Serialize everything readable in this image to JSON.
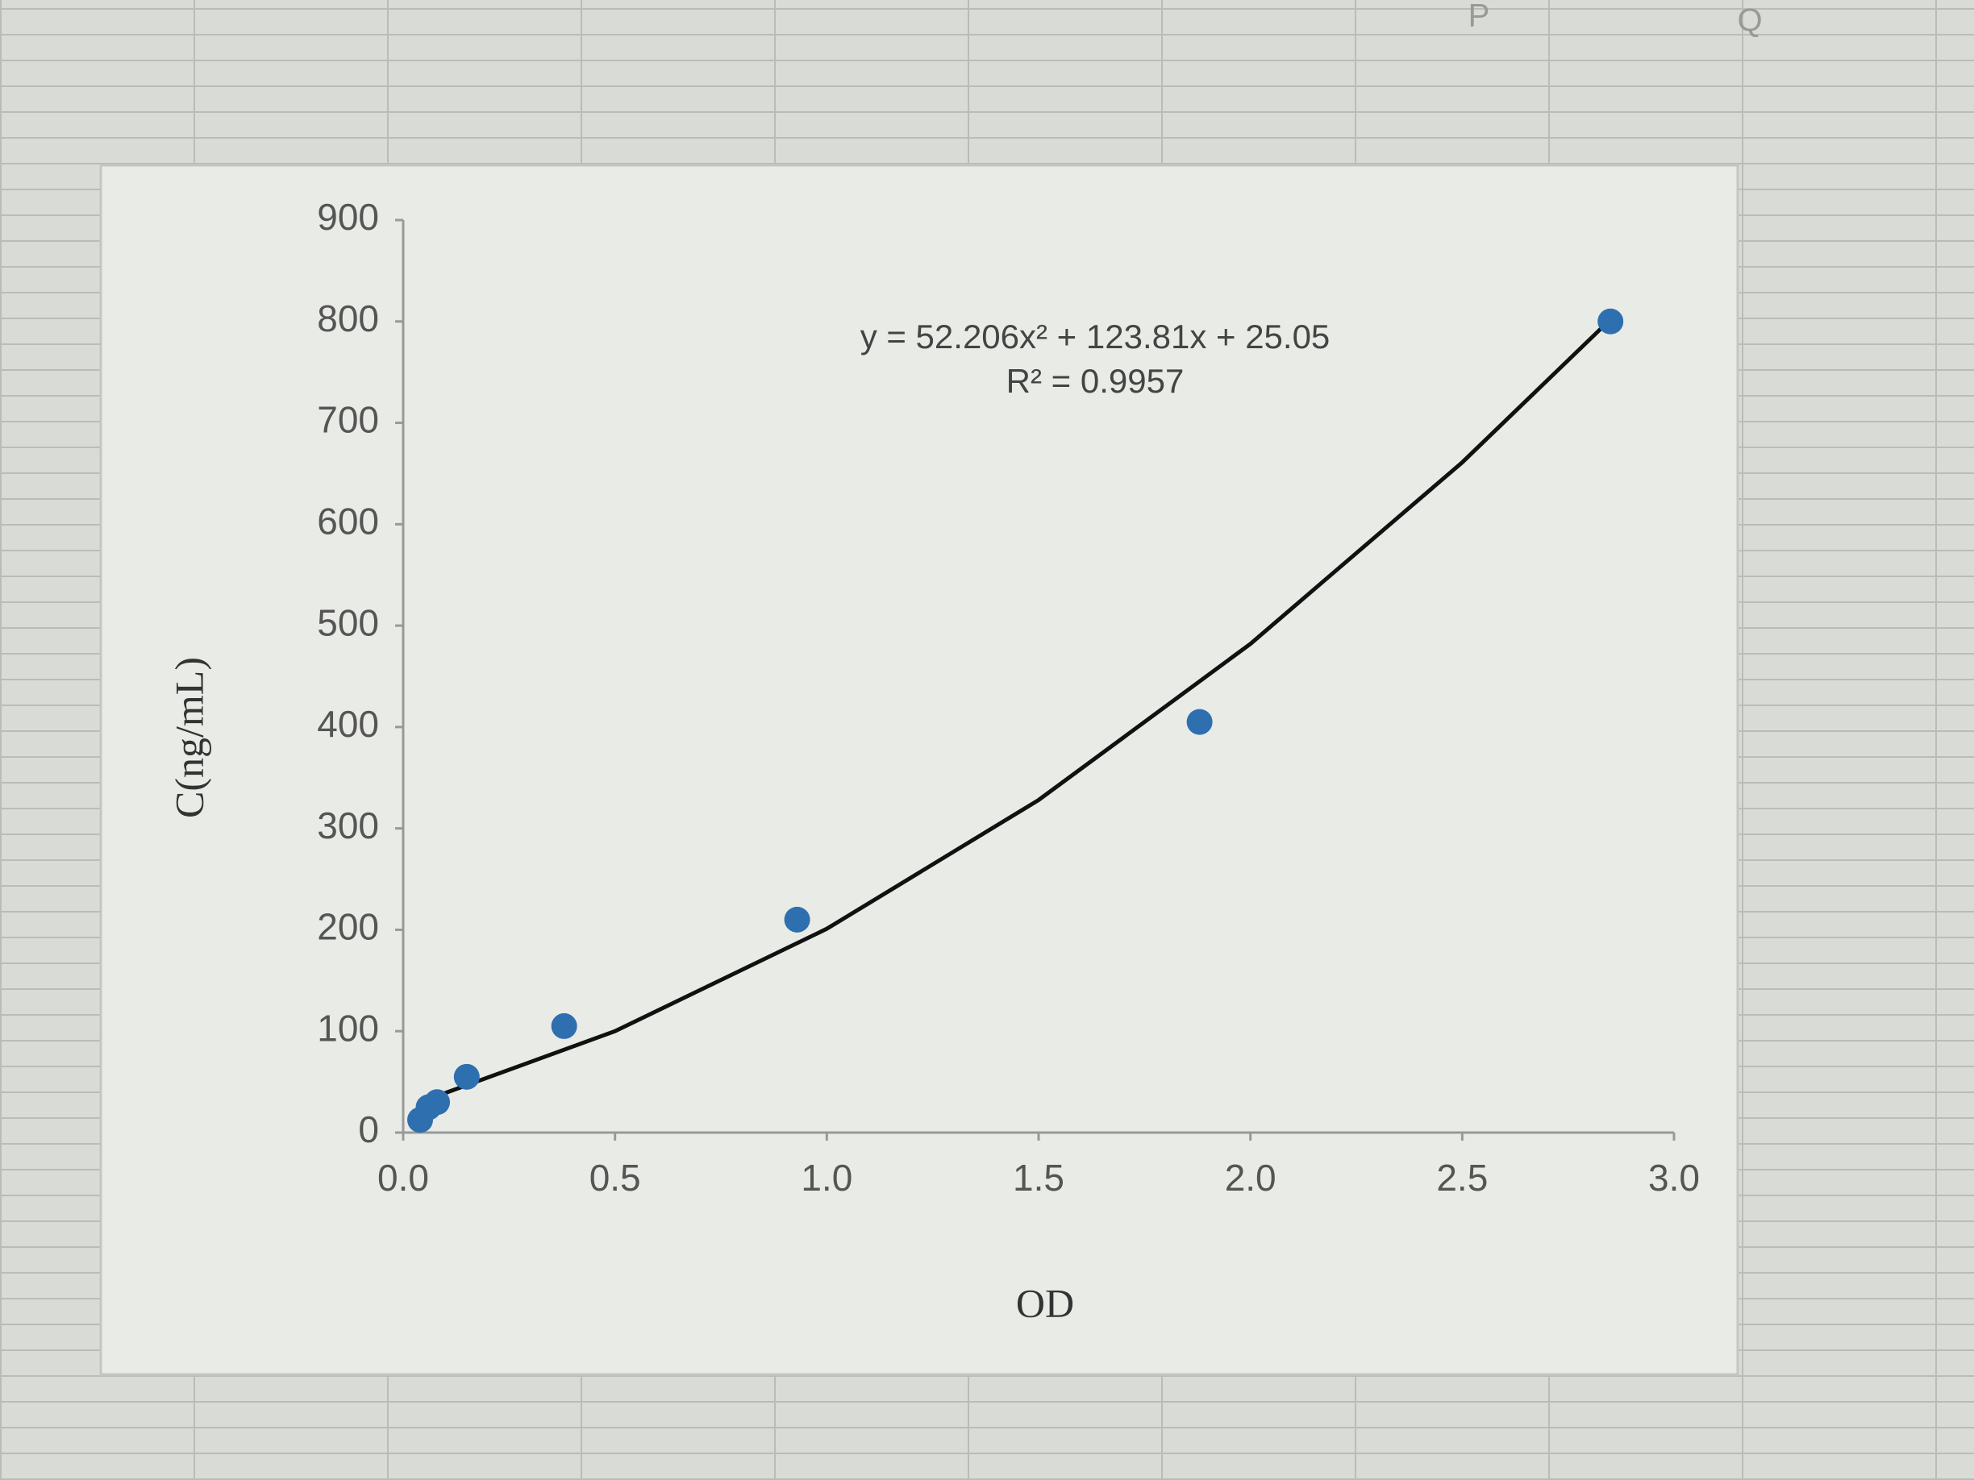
{
  "spreadsheet": {
    "columns": [
      "P",
      "Q"
    ]
  },
  "chart_data": {
    "type": "scatter",
    "x_label": "OD",
    "y_label": "C(ng/mL)",
    "annotations": [
      "y = 52.206x² + 123.81x + 25.05",
      "R² = 0.9957"
    ],
    "series": [
      {
        "type": "scatter",
        "color": "#2e6fb0",
        "x": [
          0.04,
          0.06,
          0.08,
          0.15,
          0.38,
          0.93,
          1.88,
          2.85
        ],
        "values": [
          12.5,
          25,
          30,
          55,
          105,
          210,
          405,
          800
        ]
      },
      {
        "type": "line",
        "color": "#111111",
        "x": [
          0.04,
          0.5,
          1.0,
          1.5,
          2.0,
          2.5,
          2.85
        ],
        "values": [
          30,
          100,
          201,
          328,
          482,
          661,
          802
        ]
      }
    ],
    "xlim": [
      0,
      3
    ],
    "ylim": [
      0,
      900
    ],
    "xticks": [
      {
        "value": 0,
        "label": "0.0"
      },
      0.5,
      {
        "value": 1,
        "label": "1.0"
      },
      1.5,
      {
        "value": 2,
        "label": "2.0"
      },
      2.5,
      {
        "value": 3,
        "label": "3.0"
      }
    ],
    "yticks": [
      0,
      100,
      200,
      300,
      400,
      500,
      600,
      700,
      800,
      900
    ],
    "grid": false
  }
}
